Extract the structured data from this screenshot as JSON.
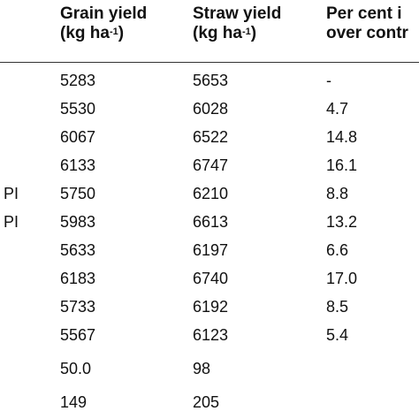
{
  "table": {
    "headers": {
      "grain_line1": "Grain yield",
      "grain_line2": "(kg ha",
      "grain_sup": "-1",
      "grain_close": ")",
      "straw_line1": "Straw yield",
      "straw_line2": "(kg ha",
      "straw_sup": "-1",
      "straw_close": ")",
      "pct_line1": "Per cent i",
      "pct_line2": "over contr"
    },
    "rows": [
      {
        "treatment": "",
        "grain": "5283",
        "straw": "5653",
        "pct": "-"
      },
      {
        "treatment": "",
        "grain": "5530",
        "straw": "6028",
        "pct": "4.7"
      },
      {
        "treatment": "",
        "grain": "6067",
        "straw": "6522",
        "pct": "14.8"
      },
      {
        "treatment": "",
        "grain": "6133",
        "straw": "6747",
        "pct": "16.1"
      },
      {
        "treatment": "PI",
        "grain": "5750",
        "straw": "6210",
        "pct": "8.8"
      },
      {
        "treatment": "PI",
        "grain": "5983",
        "straw": "6613",
        "pct": "13.2"
      },
      {
        "treatment": "",
        "grain": "5633",
        "straw": "6197",
        "pct": "6.6"
      },
      {
        "treatment": "",
        "grain": "6183",
        "straw": "6740",
        "pct": "17.0"
      },
      {
        "treatment": "",
        "grain": "5733",
        "straw": "6192",
        "pct": "8.5"
      },
      {
        "treatment": "",
        "grain": "5567",
        "straw": "6123",
        "pct": "5.4"
      },
      {
        "treatment": "",
        "grain": "50.0",
        "straw": "98",
        "pct": ""
      },
      {
        "treatment": "",
        "grain": "149",
        "straw": "205",
        "pct": ""
      }
    ]
  }
}
